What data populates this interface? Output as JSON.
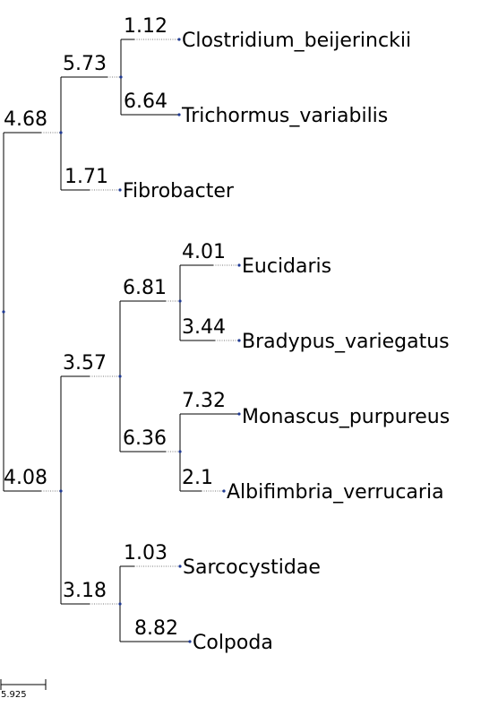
{
  "tree": {
    "leaves": [
      {
        "name": "Clostridium_beijerinckii",
        "branch_length": "1.12"
      },
      {
        "name": "Trichormus_variabilis",
        "branch_length": "6.64"
      },
      {
        "name": "Fibrobacter",
        "branch_length": "1.71"
      },
      {
        "name": "Eucidaris",
        "branch_length": "4.01"
      },
      {
        "name": "Bradypus_variegatus",
        "branch_length": "3.44"
      },
      {
        "name": "Monascus_purpureus",
        "branch_length": "7.32"
      },
      {
        "name": "Albifimbria_verrucaria",
        "branch_length": "2.1"
      },
      {
        "name": "Sarcocystidae",
        "branch_length": "1.03"
      },
      {
        "name": "Colpoda",
        "branch_length": "8.82"
      }
    ],
    "internal": [
      {
        "id": "clade-clos-trich",
        "branch_length": "5.73"
      },
      {
        "id": "clade-upper",
        "branch_length": "4.68"
      },
      {
        "id": "clade-euc-brad",
        "branch_length": "6.81"
      },
      {
        "id": "clade-mon-alb",
        "branch_length": "6.36"
      },
      {
        "id": "clade-mid",
        "branch_length": "3.57"
      },
      {
        "id": "clade-sar-col",
        "branch_length": "3.18"
      },
      {
        "id": "clade-lower",
        "branch_length": "4.08"
      }
    ]
  },
  "scale_bar": {
    "label": "5.925"
  },
  "colors": {
    "node": "#1f3a93",
    "branch": "#000000",
    "leaf_connector": "#7a7a7a"
  }
}
